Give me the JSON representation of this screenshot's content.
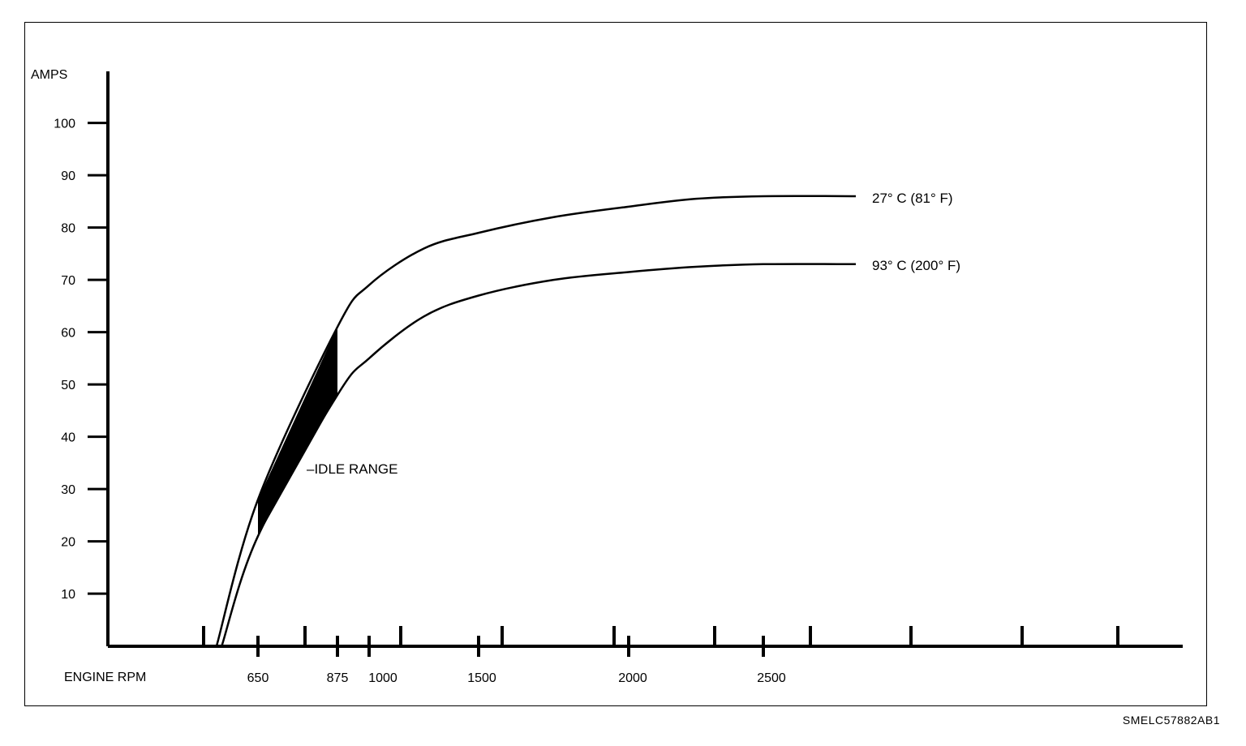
{
  "chart_data": {
    "type": "line",
    "title": "",
    "ylabel": "AMPS",
    "xlabel": "ENGINE RPM",
    "y_ticks": [
      10,
      20,
      30,
      40,
      50,
      60,
      70,
      80,
      90,
      100
    ],
    "x_tick_labels": [
      "650",
      "875",
      "1000",
      "1500",
      "2000",
      "2500"
    ],
    "ylim": [
      0,
      110
    ],
    "grid": false,
    "series": [
      {
        "name": "27° C (81° F)",
        "points": [
          [
            450,
            0
          ],
          [
            650,
            28
          ],
          [
            875,
            61
          ],
          [
            1000,
            69
          ],
          [
            1250,
            76
          ],
          [
            1500,
            79
          ],
          [
            1750,
            82
          ],
          [
            2000,
            84
          ],
          [
            2250,
            85.5
          ],
          [
            2500,
            86
          ],
          [
            2750,
            86
          ]
        ]
      },
      {
        "name": "93° C (200° F)",
        "points": [
          [
            475,
            0
          ],
          [
            650,
            21
          ],
          [
            875,
            48
          ],
          [
            1000,
            55
          ],
          [
            1250,
            63
          ],
          [
            1500,
            67
          ],
          [
            1750,
            70
          ],
          [
            2000,
            71.5
          ],
          [
            2250,
            72.5
          ],
          [
            2500,
            73
          ],
          [
            2750,
            73
          ]
        ]
      }
    ],
    "shaded_region": {
      "label": "–IDLE RANGE",
      "x_range": [
        650,
        875
      ]
    },
    "figure_code": "SMELC57882AB1"
  }
}
